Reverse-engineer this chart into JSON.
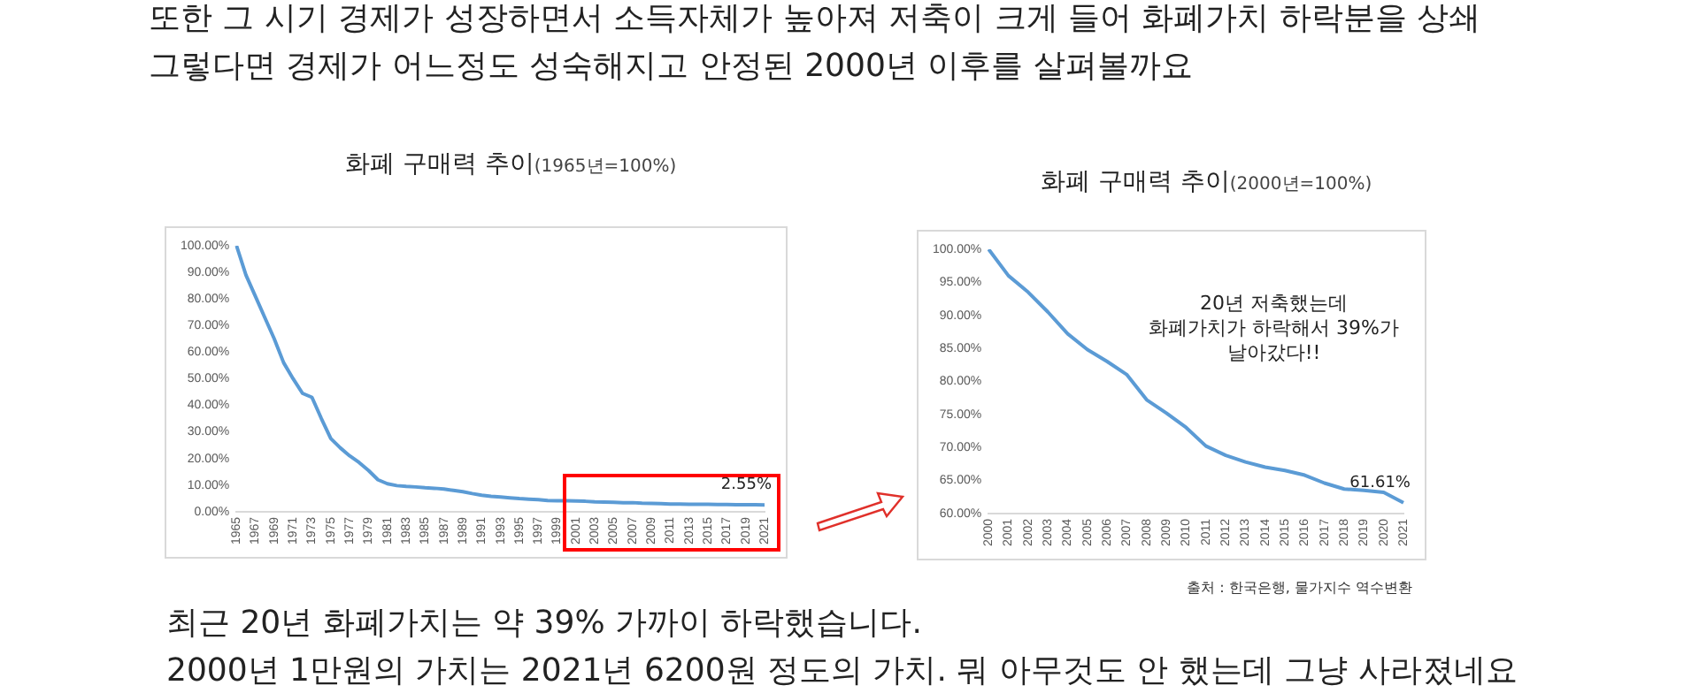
{
  "chart_data": [
    {
      "type": "line",
      "title": "화폐 구매력 추이",
      "subtitle": "(1965년=100%)",
      "annotations": [
        "또한 그 시기 경제가 성장하면서 소득자체가 높아져 저축이 크게 들어 화폐가치 하락분을 상쇄",
        "그렇다면 경제가 어느정도 성숙해지고 안정된 2000년 이후를 살펴볼까요"
      ],
      "categories": [
        "1965",
        null,
        "1967",
        null,
        "1969",
        null,
        "1971",
        null,
        "1973",
        null,
        "1975",
        null,
        "1977",
        null,
        "1979",
        null,
        "1981",
        null,
        "1983",
        null,
        "1985",
        null,
        "1987",
        null,
        "1989",
        null,
        "1991",
        null,
        "1993",
        null,
        "1995",
        null,
        "1997",
        null,
        "1999",
        null,
        "2001",
        null,
        "2003",
        null,
        "2005",
        null,
        "2007",
        null,
        "2009",
        null,
        "2011",
        null,
        "2013",
        null,
        "2015",
        null,
        "2017",
        null,
        "2019",
        null,
        "2021"
      ],
      "series": [
        {
          "color": "#5b9bd5",
          "values": [
            100,
            89,
            81,
            73,
            65,
            56,
            50,
            44.5,
            43,
            35,
            27.5,
            24,
            21,
            18.5,
            15.5,
            12,
            10.5,
            9.8,
            9.5,
            9.3,
            9,
            8.8,
            8.5,
            8,
            7.5,
            6.8,
            6.2,
            5.8,
            5.5,
            5.2,
            4.9,
            4.7,
            4.5,
            4.2,
            4.1,
            4.1,
            4,
            3.9,
            3.7,
            3.6,
            3.5,
            3.4,
            3.4,
            3.2,
            3.1,
            3,
            2.9,
            2.9,
            2.8,
            2.8,
            2.8,
            2.7,
            2.7,
            2.6,
            2.6,
            2.6,
            2.55
          ],
          "value_labels": [
            null,
            null,
            null,
            null,
            null,
            null,
            null,
            null,
            null,
            null,
            null,
            null,
            null,
            null,
            null,
            null,
            null,
            null,
            null,
            null,
            null,
            null,
            null,
            null,
            null,
            null,
            null,
            null,
            null,
            null,
            null,
            null,
            null,
            null,
            null,
            null,
            null,
            null,
            null,
            null,
            null,
            null,
            null,
            null,
            null,
            null,
            null,
            null,
            null,
            null,
            null,
            null,
            null,
            null,
            null,
            null,
            "2.55%"
          ]
        }
      ],
      "ylim": [
        0,
        100
      ],
      "yticks": [
        {
          "value": 0,
          "label": "0.00%"
        },
        {
          "value": 10,
          "label": "10.00%"
        },
        {
          "value": 20,
          "label": "20.00%"
        },
        {
          "value": 30,
          "label": "30.00%"
        },
        {
          "value": 40,
          "label": "40.00%"
        },
        {
          "value": 50,
          "label": "50.00%"
        },
        {
          "value": 60,
          "label": "60.00%"
        },
        {
          "value": 70,
          "label": "70.00%"
        },
        {
          "value": 80,
          "label": "80.00%"
        },
        {
          "value": 90,
          "label": "90.00%"
        },
        {
          "value": 100,
          "label": "100.00%"
        }
      ],
      "grid": false,
      "legend": false,
      "marker": "none",
      "line_style": "solid"
    },
    {
      "type": "line",
      "title": "화폐 구매력 추이",
      "subtitle": "(2000년=100%)",
      "annotations": [
        "20년 저축했는데\n화폐가치가 하락해서 39%가\n날아갔다!!",
        "출처 : 한국은행, 물가지수 역수변환",
        "최근 20년 화폐가치는 약 39% 가까이 하락했습니다.",
        "2000년 1만원의 가치는 2021년 6200원 정도의 가치. 뭐 아무것도 안 했는데 그냥 사라졌네요"
      ],
      "categories": [
        "2000",
        "2001",
        "2002",
        "2003",
        "2004",
        "2005",
        "2006",
        "2007",
        "2008",
        "2009",
        "2010",
        "2011",
        "2012",
        "2013",
        "2014",
        "2015",
        "2016",
        "2017",
        "2018",
        "2019",
        "2020",
        "2021"
      ],
      "series": [
        {
          "color": "#5b9bd5",
          "values": [
            100,
            96,
            93.5,
            90.5,
            87.2,
            84.8,
            83,
            81,
            77.2,
            75.2,
            73,
            70.2,
            68.8,
            67.8,
            67,
            66.5,
            65.8,
            64.6,
            63.7,
            63.5,
            63.2,
            61.61
          ],
          "value_labels": [
            null,
            null,
            null,
            null,
            null,
            null,
            null,
            null,
            null,
            null,
            null,
            null,
            null,
            null,
            null,
            null,
            null,
            null,
            null,
            null,
            null,
            "61.61%"
          ]
        }
      ],
      "ylim": [
        60,
        100
      ],
      "yticks": [
        {
          "value": 60,
          "label": "60.00%"
        },
        {
          "value": 65,
          "label": "65.00%"
        },
        {
          "value": 70,
          "label": "70.00%"
        },
        {
          "value": 75,
          "label": "75.00%"
        },
        {
          "value": 80,
          "label": "80.00%"
        },
        {
          "value": 85,
          "label": "85.00%"
        },
        {
          "value": 90,
          "label": "90.00%"
        },
        {
          "value": 95,
          "label": "95.00%"
        },
        {
          "value": 100,
          "label": "100.00%"
        }
      ],
      "grid": false,
      "legend": false,
      "marker": "none",
      "line_style": "solid"
    }
  ]
}
